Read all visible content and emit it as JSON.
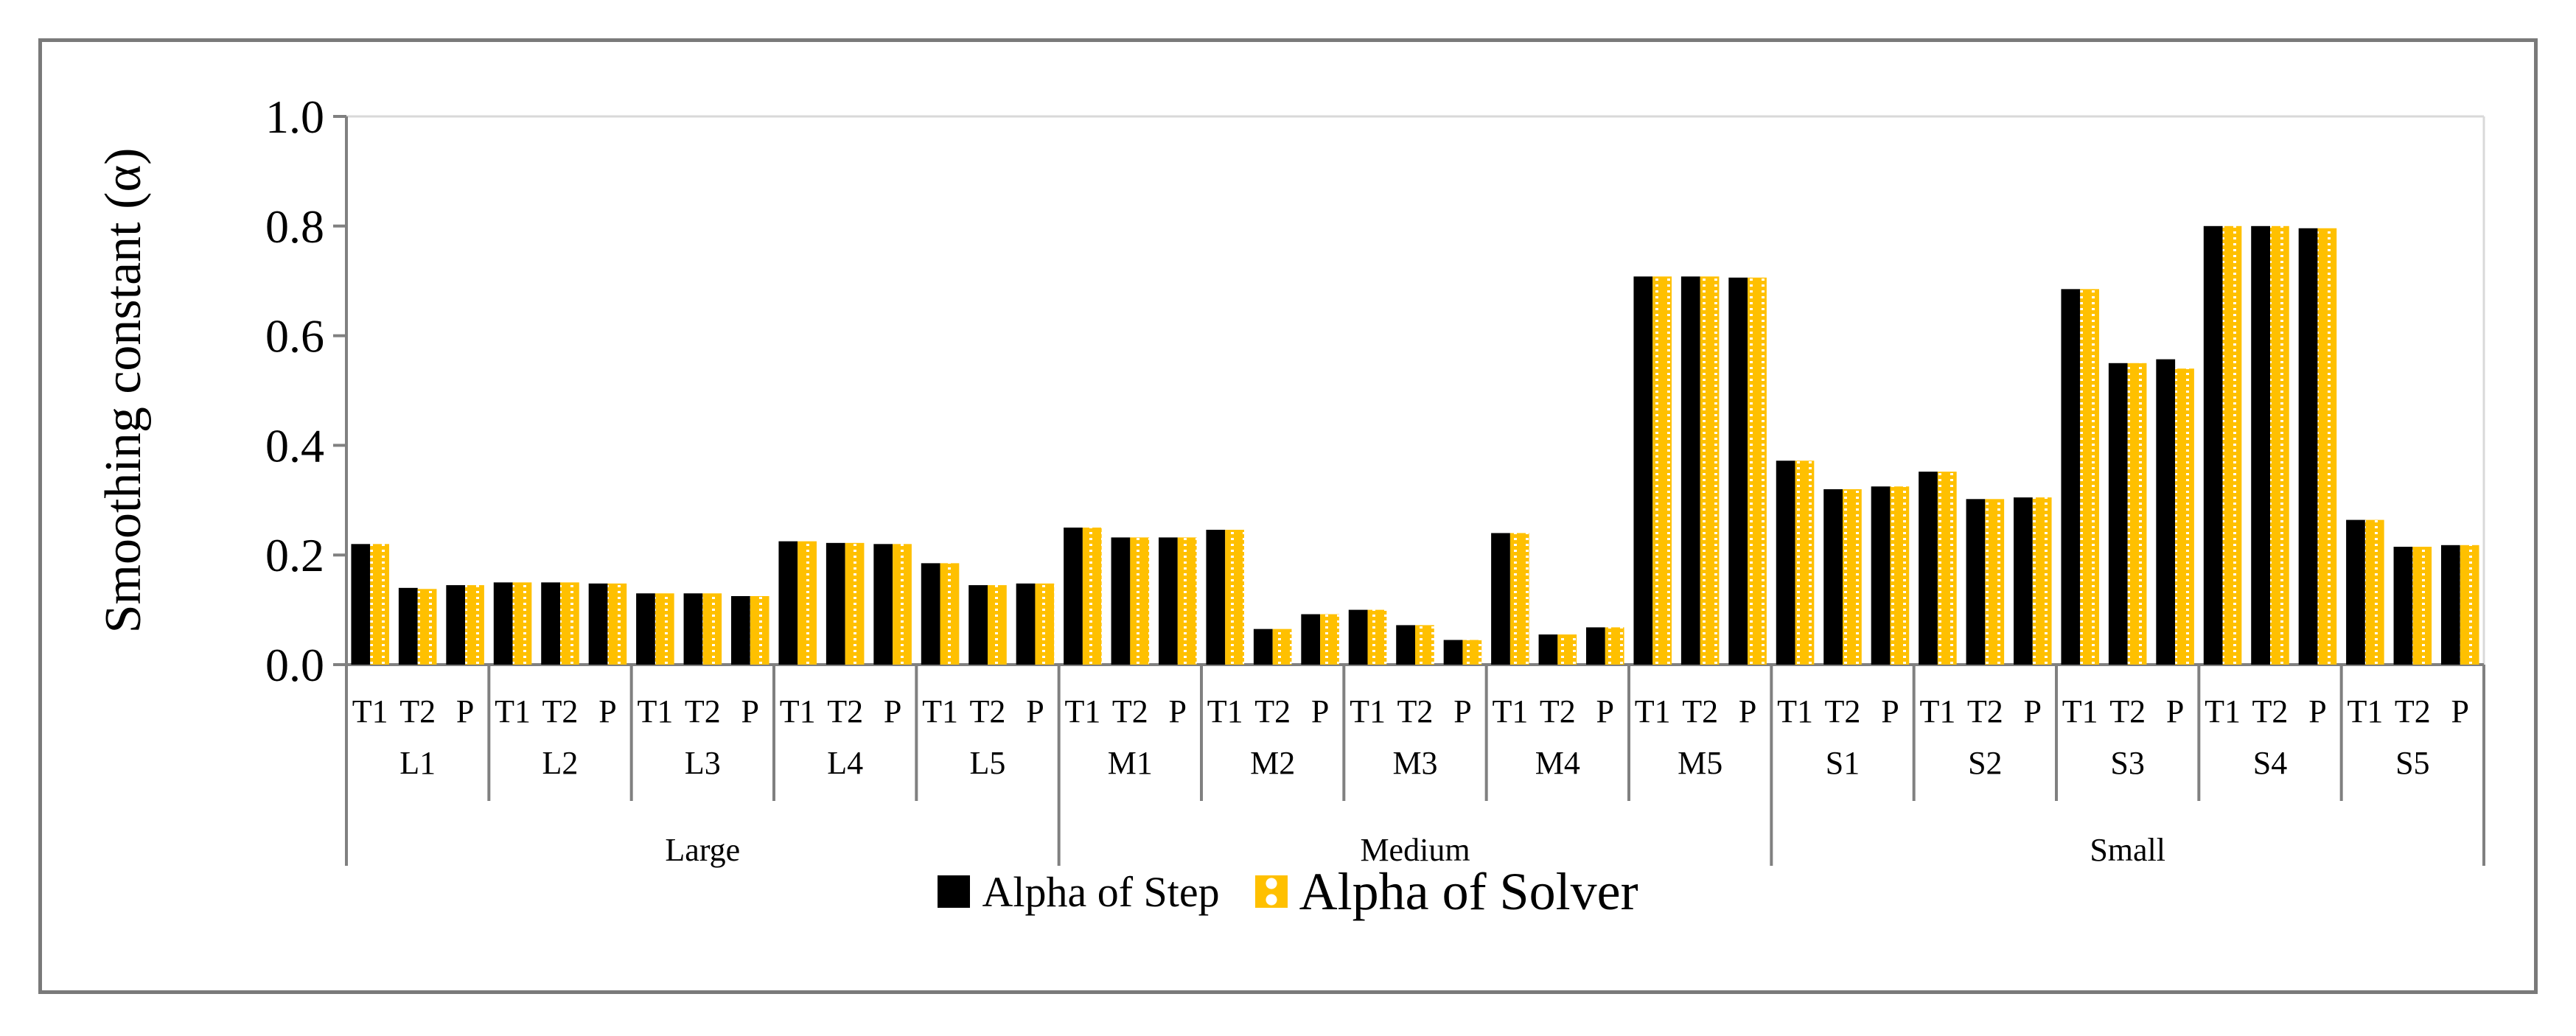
{
  "chart_data": {
    "type": "bar",
    "title": "",
    "xlabel": "",
    "ylabel": "Smoothing constant (α)",
    "ylim": [
      0,
      1
    ],
    "yticks": [
      "0.0",
      "0.2",
      "0.4",
      "0.6",
      "0.8",
      "1.0"
    ],
    "grid": false,
    "legend_position": "bottom",
    "groups": [
      {
        "label": "Large",
        "cases": [
          "L1",
          "L2",
          "L3",
          "L4",
          "L5"
        ]
      },
      {
        "label": "Medium",
        "cases": [
          "M1",
          "M2",
          "M3",
          "M4",
          "M5"
        ]
      },
      {
        "label": "Small",
        "cases": [
          "S1",
          "S2",
          "S3",
          "S4",
          "S5"
        ]
      }
    ],
    "sub_categories": [
      "T1",
      "T2",
      "P"
    ],
    "series": [
      {
        "name": "Alpha of Step",
        "color": "#000000",
        "values": [
          0.22,
          0.14,
          0.145,
          0.15,
          0.15,
          0.148,
          0.13,
          0.13,
          0.125,
          0.225,
          0.222,
          0.22,
          0.185,
          0.145,
          0.148,
          0.25,
          0.232,
          0.232,
          0.246,
          0.065,
          0.092,
          0.1,
          0.072,
          0.045,
          0.24,
          0.055,
          0.068,
          0.708,
          0.708,
          0.706,
          0.372,
          0.32,
          0.325,
          0.352,
          0.302,
          0.305,
          0.685,
          0.55,
          0.557,
          0.8,
          0.8,
          0.796,
          0.264,
          0.215,
          0.218
        ]
      },
      {
        "name": "Alpha of Solver",
        "color": "#FFC000",
        "pattern": "dotted",
        "values": [
          0.22,
          0.138,
          0.145,
          0.15,
          0.15,
          0.148,
          0.13,
          0.13,
          0.125,
          0.225,
          0.222,
          0.22,
          0.185,
          0.145,
          0.148,
          0.25,
          0.232,
          0.232,
          0.246,
          0.065,
          0.092,
          0.1,
          0.072,
          0.045,
          0.24,
          0.055,
          0.068,
          0.708,
          0.708,
          0.706,
          0.372,
          0.32,
          0.325,
          0.352,
          0.302,
          0.305,
          0.685,
          0.55,
          0.54,
          0.8,
          0.8,
          0.796,
          0.264,
          0.215,
          0.218
        ]
      }
    ]
  }
}
